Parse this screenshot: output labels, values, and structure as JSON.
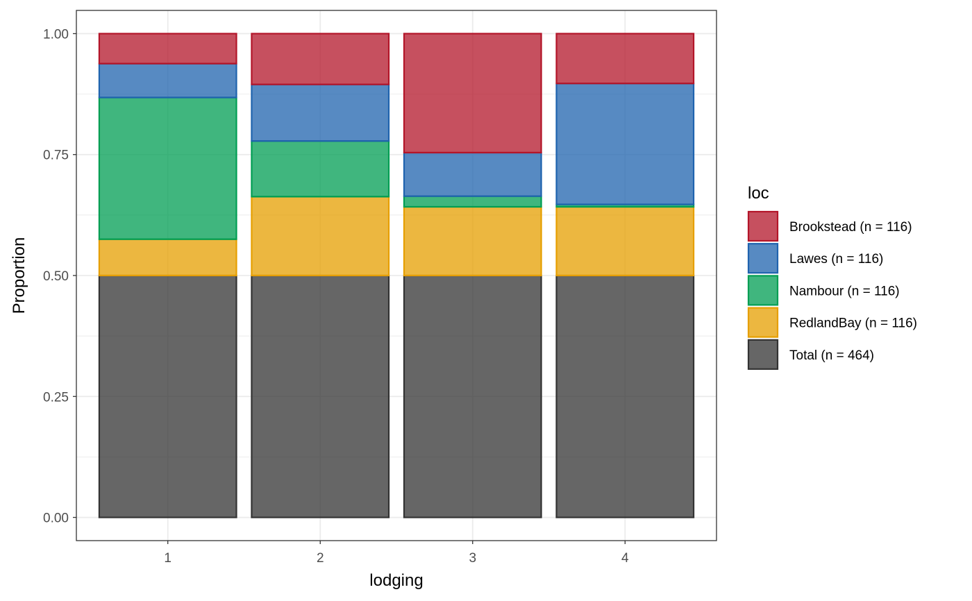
{
  "chart_data": {
    "type": "bar",
    "stacked": true,
    "xlabel": "lodging",
    "ylabel": "Proportion",
    "categories": [
      "1",
      "2",
      "3",
      "4"
    ],
    "ylim": [
      -0.048,
      1.048
    ],
    "yticks": [
      0.0,
      0.25,
      0.5,
      0.75,
      1.0
    ],
    "ytick_labels": [
      "0.00",
      "0.25",
      "0.50",
      "0.75",
      "1.00"
    ],
    "grid": true,
    "legend_position": "right",
    "legend_title": "loc",
    "series": [
      {
        "name": "Total (n = 464)",
        "color": "#333333",
        "values": [
          0.5,
          0.5,
          0.5,
          0.5
        ]
      },
      {
        "name": "RedlandBay (n = 116)",
        "color": "#E69F00",
        "values": [
          0.075,
          0.163,
          0.142,
          0.142
        ]
      },
      {
        "name": "Nambour (n = 116)",
        "color": "#009E53",
        "values": [
          0.293,
          0.115,
          0.022,
          0.005
        ]
      },
      {
        "name": "Lawes (n = 116)",
        "color": "#1F63AE",
        "values": [
          0.07,
          0.117,
          0.09,
          0.25
        ]
      },
      {
        "name": "Brookstead (n = 116)",
        "color": "#B31529",
        "values": [
          0.062,
          0.105,
          0.246,
          0.103
        ]
      }
    ],
    "legend_order": [
      "Brookstead (n = 116)",
      "Lawes (n = 116)",
      "Nambour (n = 116)",
      "RedlandBay (n = 116)",
      "Total (n = 464)"
    ]
  }
}
